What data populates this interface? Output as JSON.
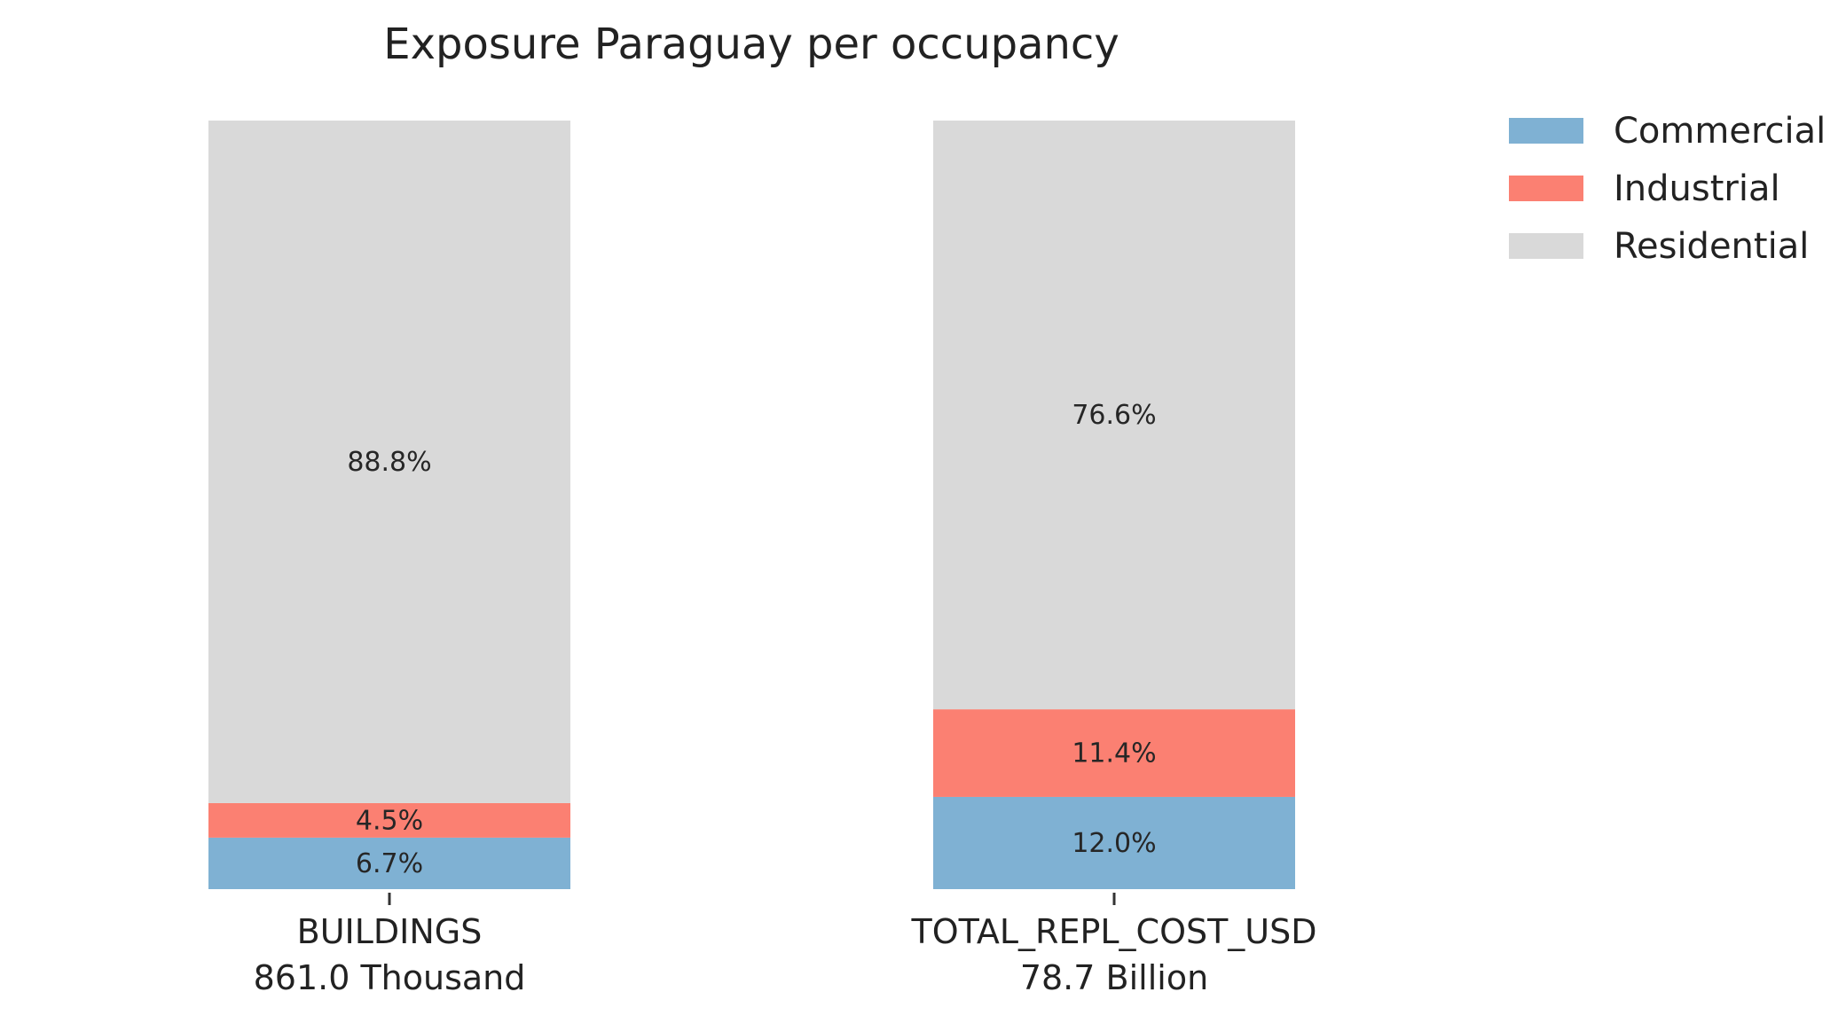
{
  "chart_data": {
    "type": "bar",
    "stacked": true,
    "percent": true,
    "title": "Exposure Paraguay per occupancy",
    "categories": [
      "BUILDINGS",
      "TOTAL_REPL_COST_USD"
    ],
    "category_totals": [
      "861.0 Thousand",
      "78.7 Billion"
    ],
    "series": [
      {
        "name": "Commercial",
        "color": "#7fb1d3",
        "values": [
          6.7,
          12.0
        ],
        "labels": [
          "6.7%",
          "12.0%"
        ]
      },
      {
        "name": "Industrial",
        "color": "#fb8072",
        "values": [
          4.5,
          11.4
        ],
        "labels": [
          "4.5%",
          "11.4%"
        ]
      },
      {
        "name": "Residential",
        "color": "#d9d9d9",
        "values": [
          88.8,
          76.6
        ],
        "labels": [
          "88.8%",
          "76.6%"
        ]
      }
    ],
    "ylim": [
      0,
      100
    ],
    "grid": false,
    "legend": "top-right"
  }
}
